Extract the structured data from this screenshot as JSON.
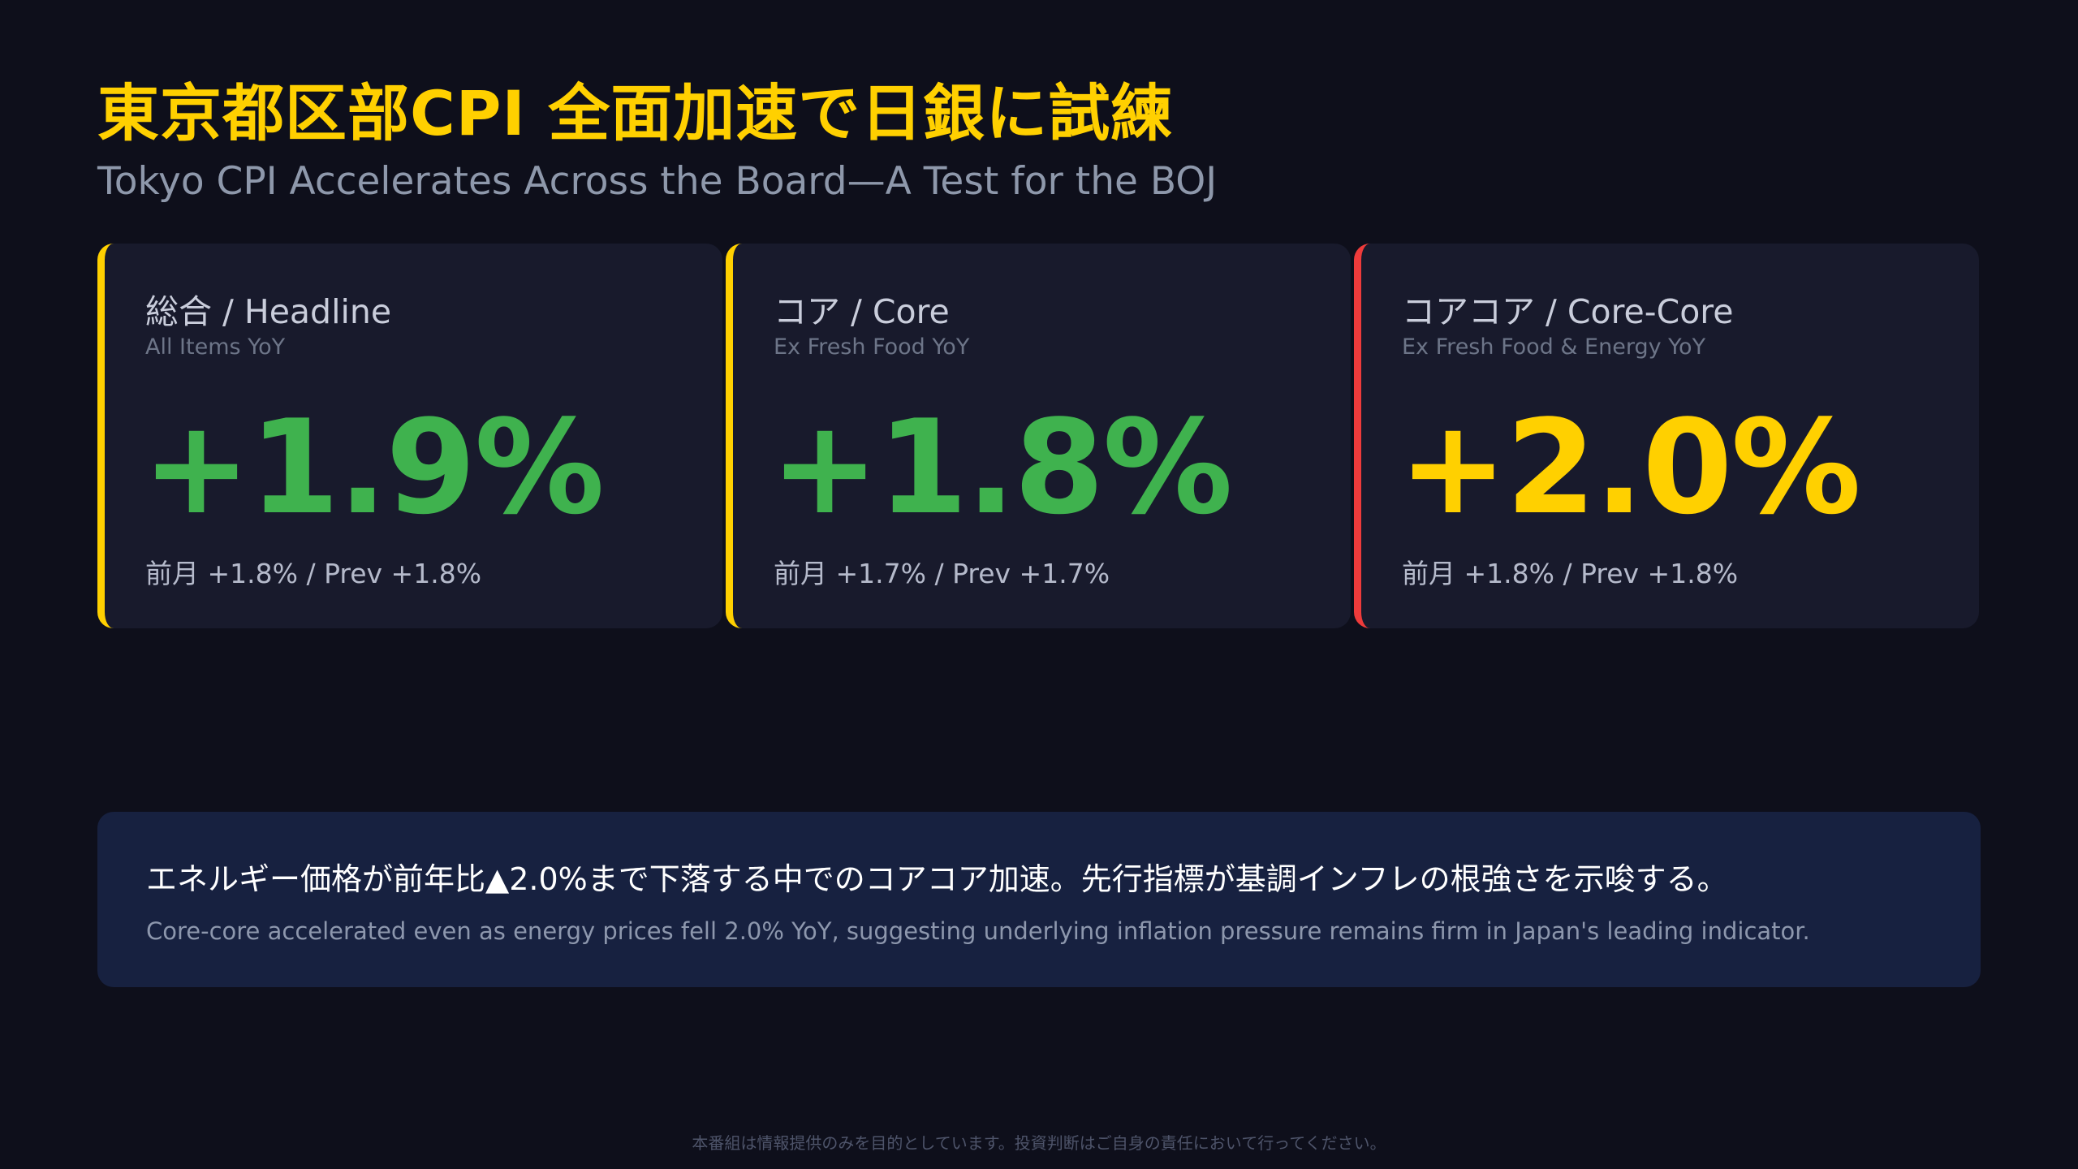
{
  "header": {
    "title": "東京都区部CPI 全面加速で日銀に試練",
    "subtitle": "Tokyo CPI Accelerates Across the Board—A Test for the BOJ"
  },
  "cards": [
    {
      "title": "総合 / Headline",
      "subtitle": "All Items YoY",
      "value": "+1.9%",
      "prev": "前月 +1.8% / Prev +1.8%",
      "accent_color": "#ffd000",
      "value_color": "#3fb24e"
    },
    {
      "title": "コア / Core",
      "subtitle": "Ex Fresh Food YoY",
      "value": "+1.8%",
      "prev": "前月 +1.7% / Prev +1.7%",
      "accent_color": "#ffd000",
      "value_color": "#3fb24e"
    },
    {
      "title": "コアコア / Core-Core",
      "subtitle": "Ex Fresh Food & Energy YoY",
      "value": "+2.0%",
      "prev": "前月 +1.8% / Prev +1.8%",
      "accent_color": "#ef3b3b",
      "value_color": "#ffd000"
    }
  ],
  "note": {
    "ja": "エネルギー価格が前年比▲2.0%まで下落する中でのコアコア加速。先行指標が基調インフレの根強さを示唆する。",
    "en": "Core-core accelerated even as energy prices fell 2.0% YoY, suggesting underlying inflation pressure remains firm in Japan's leading indicator."
  },
  "footer": {
    "disclaimer": "本番組は情報提供のみを目的としています。投資判断はご自身の責任において行ってください。"
  }
}
